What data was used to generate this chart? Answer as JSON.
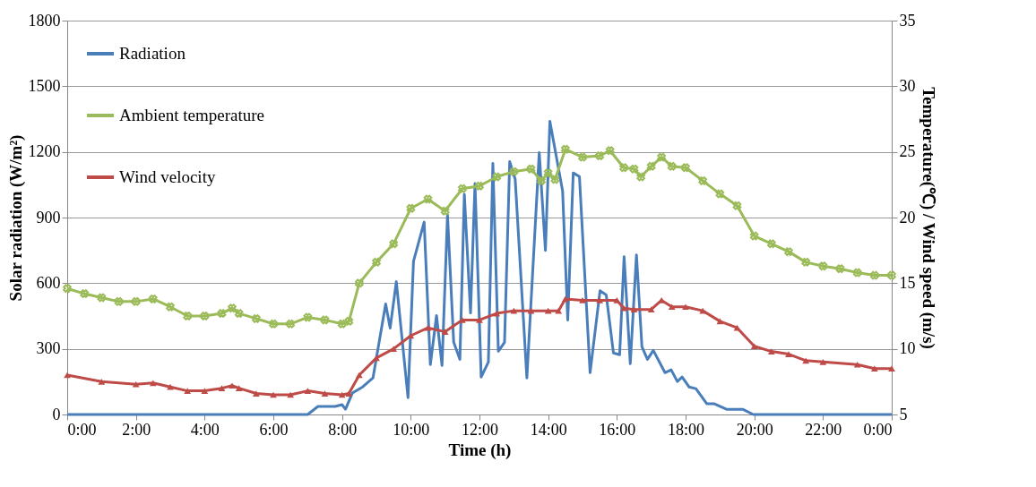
{
  "chart_data": {
    "type": "line",
    "xlabel": "Time (h)",
    "ylabel": "Solar radiation  (W/m²)",
    "y2label": "Temperature(℃)  / Wind speed (m/s)",
    "xlim": [
      0,
      24
    ],
    "xticks": [
      {
        "value": 0,
        "label": "0:00"
      },
      {
        "value": 2,
        "label": "2:00"
      },
      {
        "value": 4,
        "label": "4:00"
      },
      {
        "value": 6,
        "label": "6:00"
      },
      {
        "value": 8,
        "label": "8:00"
      },
      {
        "value": 10,
        "label": "10:00"
      },
      {
        "value": 12,
        "label": "12:00"
      },
      {
        "value": 14,
        "label": "14:00"
      },
      {
        "value": 16,
        "label": "16:00"
      },
      {
        "value": 18,
        "label": "18:00"
      },
      {
        "value": 20,
        "label": "20:00"
      },
      {
        "value": 22,
        "label": "22:00"
      },
      {
        "value": 24,
        "label": "0:00"
      }
    ],
    "ylim": [
      0,
      1800
    ],
    "yticks": [
      0,
      300,
      600,
      900,
      1200,
      1500,
      1800
    ],
    "y2lim": [
      5,
      35
    ],
    "y2ticks": [
      5,
      10,
      15,
      20,
      25,
      30,
      35
    ],
    "grid": "y",
    "legend": "top left",
    "line_style": "solid",
    "series": [
      {
        "name": "Radiation",
        "color": "#4a7ebb",
        "marker": "none",
        "x": [
          0,
          7.0,
          7.3,
          7.8,
          8.0,
          8.1,
          8.3,
          8.6,
          8.9,
          9.27,
          9.4,
          9.58,
          9.92,
          10.08,
          10.39,
          10.57,
          10.75,
          10.91,
          11.07,
          11.25,
          11.43,
          11.56,
          11.74,
          11.87,
          12.05,
          12.26,
          12.39,
          12.55,
          12.73,
          12.88,
          13.04,
          13.38,
          13.74,
          13.92,
          14.05,
          14.42,
          14.57,
          14.73,
          14.91,
          15.22,
          15.51,
          15.69,
          15.9,
          16.08,
          16.21,
          16.39,
          16.57,
          16.73,
          16.89,
          17.06,
          17.4,
          17.58,
          17.76,
          17.9,
          18.1,
          18.3,
          18.62,
          18.84,
          19.19,
          19.66,
          19.97,
          24
        ],
        "values": [
          0,
          0,
          37,
          37,
          45,
          24,
          98,
          126,
          167,
          505,
          395,
          607,
          77,
          700,
          879,
          228,
          452,
          224,
          912,
          330,
          252,
          1006,
          464,
          1055,
          171,
          240,
          1148,
          289,
          330,
          1156,
          1075,
          167,
          1197,
          750,
          1340,
          1022,
          432,
          1104,
          1087,
          191,
          566,
          546,
          281,
          273,
          721,
          232,
          729,
          309,
          252,
          293,
          191,
          204,
          151,
          171,
          126,
          118,
          49,
          49,
          24,
          24,
          0,
          0
        ]
      },
      {
        "name": "Ambient temperature",
        "color": "#9bbb59",
        "marker": "cross",
        "axis": "y2",
        "x": [
          0,
          0.5,
          1,
          1.5,
          2,
          2.5,
          3,
          3.5,
          4,
          4.5,
          4.8,
          5,
          5.5,
          6,
          6.5,
          7,
          7.5,
          8,
          8.2,
          8.5,
          9,
          9.5,
          10,
          10.5,
          11,
          11.5,
          12,
          12.5,
          13,
          13.5,
          13.8,
          14,
          14.2,
          14.5,
          15,
          15.5,
          15.8,
          16.2,
          16.5,
          16.7,
          17,
          17.3,
          17.6,
          18,
          18.5,
          19,
          19.5,
          20,
          20.5,
          21,
          21.5,
          22,
          22.5,
          23,
          23.5,
          24
        ],
        "values": [
          14.6,
          14.2,
          13.9,
          13.6,
          13.6,
          13.8,
          13.2,
          12.5,
          12.5,
          12.7,
          13.1,
          12.7,
          12.3,
          11.9,
          11.9,
          12.4,
          12.2,
          11.9,
          12.1,
          15.0,
          16.6,
          18.0,
          20.7,
          21.4,
          20.5,
          22.2,
          22.4,
          23.1,
          23.5,
          23.7,
          22.8,
          23.4,
          22.9,
          25.2,
          24.6,
          24.7,
          25.1,
          23.8,
          23.7,
          23.1,
          23.9,
          24.6,
          23.9,
          23.8,
          22.8,
          21.8,
          20.9,
          18.6,
          18.0,
          17.4,
          16.6,
          16.3,
          16.1,
          15.8,
          15.6,
          15.6
        ]
      },
      {
        "name": "Wind velocity",
        "color": "#be4b48",
        "marker": "triangle",
        "axis": "y2",
        "x": [
          0,
          1,
          2,
          2.5,
          3,
          3.5,
          4,
          4.5,
          4.8,
          5,
          5.5,
          6,
          6.5,
          7,
          7.5,
          8,
          8.2,
          8.5,
          9,
          9.5,
          10,
          10.5,
          11,
          11.5,
          12,
          12.5,
          13,
          13.5,
          14,
          14.3,
          14.5,
          15,
          15.5,
          16,
          16.2,
          16.5,
          17,
          17.3,
          17.6,
          18,
          18.5,
          19,
          19.5,
          20,
          20.5,
          21,
          21.5,
          22,
          23,
          23.5,
          24
        ],
        "values": [
          8.0,
          7.5,
          7.3,
          7.4,
          7.1,
          6.8,
          6.8,
          7.0,
          7.2,
          7.0,
          6.6,
          6.5,
          6.5,
          6.8,
          6.6,
          6.5,
          6.6,
          8.0,
          9.3,
          10.0,
          11.0,
          11.6,
          11.3,
          12.2,
          12.2,
          12.7,
          12.9,
          12.9,
          12.9,
          12.9,
          13.8,
          13.7,
          13.7,
          13.7,
          13.1,
          13.0,
          13.0,
          13.7,
          13.2,
          13.2,
          12.9,
          12.1,
          11.6,
          10.2,
          9.8,
          9.6,
          9.1,
          9.0,
          8.8,
          8.5,
          8.5
        ]
      }
    ]
  }
}
